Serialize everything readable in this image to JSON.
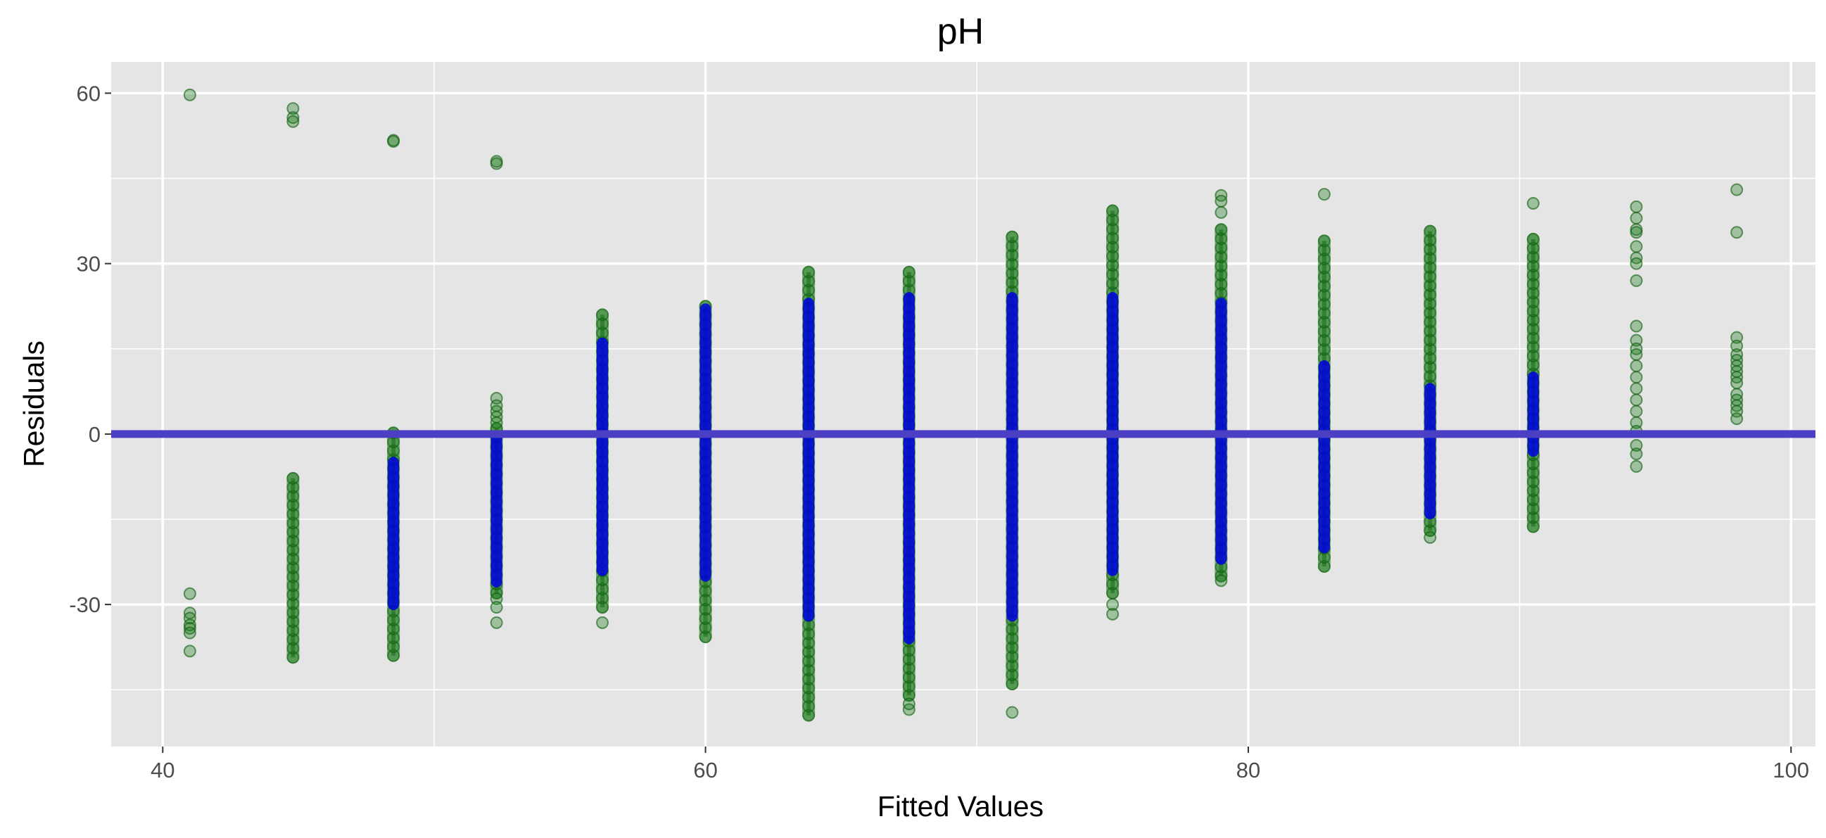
{
  "chart_data": {
    "type": "scatter",
    "title": "pH",
    "xlabel": "Fitted Values",
    "ylabel": "Residuals",
    "xlim": [
      38.1,
      100.9
    ],
    "ylim": [
      -55,
      65.5
    ],
    "x_ticks": [
      40,
      60,
      80,
      100
    ],
    "y_ticks": [
      -30,
      0,
      30,
      60
    ],
    "x_tick_labels": [
      "40",
      "60",
      "80",
      "100"
    ],
    "y_tick_labels": [
      "-30",
      "0",
      "30",
      "60"
    ],
    "grid": true,
    "legend": "none",
    "reference_line": {
      "y": 0,
      "color": "#4b3fc3"
    },
    "colors": {
      "panel": "#e5e5e5",
      "grid": "#ffffff",
      "point_fill": "#1a7a1a",
      "point_stroke": "#0d5c0d",
      "dense_core": "#0000e0"
    },
    "series": [
      {
        "points": [
          [
            41.0,
            59.7
          ],
          [
            41.0,
            -28.1
          ],
          [
            41.0,
            -31.5
          ],
          [
            41.0,
            -32.4
          ],
          [
            41.0,
            -33.6
          ],
          [
            41.0,
            -34.2
          ],
          [
            41.0,
            -35.0
          ],
          [
            41.0,
            -38.2
          ],
          [
            44.8,
            57.3
          ],
          [
            44.8,
            55.7
          ],
          [
            44.8,
            55.0
          ],
          [
            48.5,
            51.7
          ],
          [
            48.5,
            51.5
          ],
          [
            52.3,
            48.0
          ],
          [
            52.3,
            47.6
          ],
          [
            52.3,
            6.3
          ],
          [
            52.3,
            5.0
          ],
          [
            52.3,
            4.0
          ],
          [
            52.3,
            3.0
          ],
          [
            52.3,
            2.0
          ],
          [
            52.3,
            -29.0
          ],
          [
            52.3,
            -30.5
          ],
          [
            52.3,
            -33.2
          ],
          [
            56.2,
            -33.2
          ],
          [
            67.5,
            -48.5
          ],
          [
            67.5,
            -47.5
          ],
          [
            71.3,
            -49.0
          ],
          [
            75.0,
            -31.7
          ],
          [
            75.0,
            -30.0
          ],
          [
            79.0,
            -25.8
          ],
          [
            79.0,
            42.0
          ],
          [
            79.0,
            41.0
          ],
          [
            79.0,
            39.0
          ],
          [
            82.8,
            42.2
          ],
          [
            86.7,
            -18.2
          ],
          [
            90.5,
            40.6
          ],
          [
            94.3,
            40.0
          ],
          [
            94.3,
            38.0
          ],
          [
            94.3,
            36.0
          ],
          [
            94.3,
            35.5
          ],
          [
            94.3,
            33.0
          ],
          [
            94.3,
            31.0
          ],
          [
            94.3,
            30.0
          ],
          [
            94.3,
            27.0
          ],
          [
            94.3,
            19.0
          ],
          [
            94.3,
            16.5
          ],
          [
            94.3,
            15.0
          ],
          [
            94.3,
            14.0
          ],
          [
            94.3,
            12.0
          ],
          [
            94.3,
            10.0
          ],
          [
            94.3,
            8.0
          ],
          [
            94.3,
            6.0
          ],
          [
            94.3,
            4.0
          ],
          [
            94.3,
            2.0
          ],
          [
            94.3,
            0.5
          ],
          [
            94.3,
            -2.0
          ],
          [
            94.3,
            -3.5
          ],
          [
            94.3,
            -5.7
          ],
          [
            98.0,
            43.0
          ],
          [
            98.0,
            35.5
          ],
          [
            98.0,
            17.0
          ],
          [
            98.0,
            15.5
          ],
          [
            98.0,
            14.0
          ],
          [
            98.0,
            13.0
          ],
          [
            98.0,
            12.0
          ],
          [
            98.0,
            11.0
          ],
          [
            98.0,
            10.0
          ],
          [
            98.0,
            9.0
          ],
          [
            98.0,
            7.0
          ],
          [
            98.0,
            6.0
          ],
          [
            98.0,
            5.0
          ],
          [
            98.0,
            4.0
          ],
          [
            98.0,
            2.7
          ]
        ],
        "columns": [
          {
            "x": 44.8,
            "min": -39.3,
            "max": -7.8,
            "core_min": null,
            "core_max": null
          },
          {
            "x": 48.5,
            "min": -39.0,
            "max": 0.2,
            "core_min": -30.0,
            "core_max": -5.0
          },
          {
            "x": 52.3,
            "min": -28.0,
            "max": 1.0,
            "core_min": -26.0,
            "core_max": -1.0
          },
          {
            "x": 56.2,
            "min": -30.5,
            "max": 21.0,
            "core_min": -24.0,
            "core_max": 16.0
          },
          {
            "x": 60.0,
            "min": -35.7,
            "max": 22.5,
            "core_min": -25.0,
            "core_max": 22.0
          },
          {
            "x": 63.8,
            "min": -49.5,
            "max": 28.5,
            "core_min": -32.0,
            "core_max": 23.0
          },
          {
            "x": 67.5,
            "min": -46.0,
            "max": 28.5,
            "core_min": -36.0,
            "core_max": 24.0
          },
          {
            "x": 71.3,
            "min": -44.0,
            "max": 34.7,
            "core_min": -32.0,
            "core_max": 24.0
          },
          {
            "x": 75.0,
            "min": -28.0,
            "max": 39.3,
            "core_min": -24.0,
            "core_max": 24.0
          },
          {
            "x": 79.0,
            "min": -25.0,
            "max": 36.0,
            "core_min": -22.0,
            "core_max": 23.0
          },
          {
            "x": 82.8,
            "min": -23.3,
            "max": 34.0,
            "core_min": -20.0,
            "core_max": 12.0
          },
          {
            "x": 86.7,
            "min": -17.0,
            "max": 35.7,
            "core_min": -14.0,
            "core_max": 8.0
          },
          {
            "x": 90.5,
            "min": -16.3,
            "max": 34.3,
            "core_min": -3.0,
            "core_max": 10.0
          }
        ]
      }
    ]
  }
}
